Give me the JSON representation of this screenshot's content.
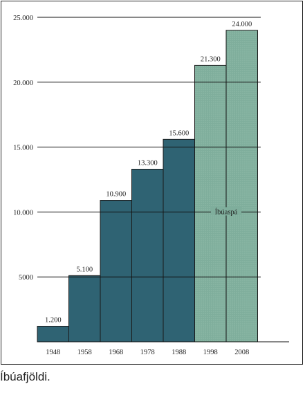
{
  "chart_data": {
    "type": "bar",
    "categories": [
      "1948",
      "1958",
      "1968",
      "1978",
      "1988",
      "1998",
      "2008"
    ],
    "values": [
      1200,
      5100,
      10900,
      13300,
      15600,
      21300,
      24000
    ],
    "value_labels": [
      "1.200",
      "5.100",
      "10.900",
      "13.300",
      "15.600",
      "21.300",
      "24.000"
    ],
    "yticks": [
      5000,
      10000,
      15000,
      20000,
      25000
    ],
    "ytick_labels": [
      "5000",
      "10.000",
      "15.000",
      "20.000",
      "25.000"
    ],
    "ylim": [
      0,
      25000
    ],
    "grid": true,
    "projected_from_index": 5,
    "annotation": "Íbúaspá",
    "colors": {
      "actual": "#2f6373",
      "projected": "#7fae9c",
      "outline": "#1a1a1a"
    }
  },
  "caption": "Íbúafjöldi."
}
